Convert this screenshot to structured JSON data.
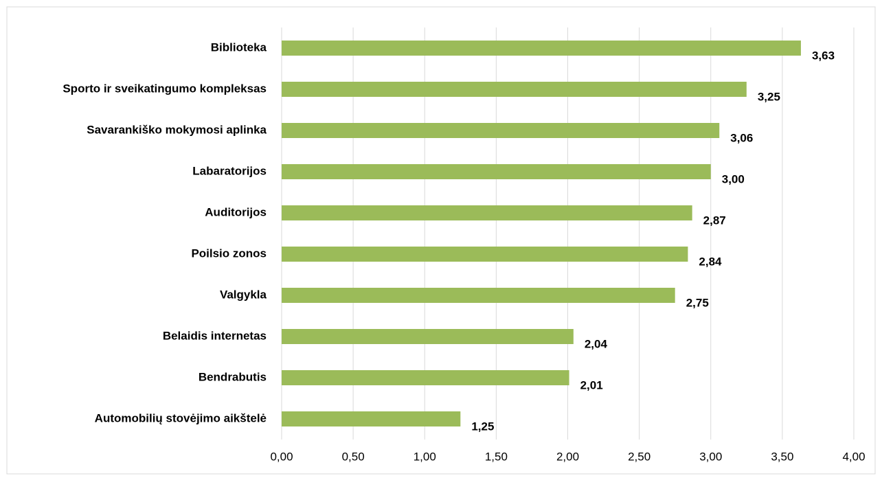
{
  "chart_data": {
    "type": "bar",
    "orientation": "horizontal",
    "categories": [
      "Biblioteka",
      "Sporto ir sveikatingumo kompleksas",
      "Savarankiško mokymosi aplinka",
      "Labaratorijos",
      "Auditorijos",
      "Poilsio zonos",
      "Valgykla",
      "Belaidis internetas",
      "Bendrabutis",
      "Automobilių stovėjimo aikštelė"
    ],
    "values": [
      3.63,
      3.25,
      3.06,
      3.0,
      2.87,
      2.84,
      2.75,
      2.04,
      2.01,
      1.25
    ],
    "value_labels": [
      "3,63",
      "3,25",
      "3,06",
      "3,00",
      "2,87",
      "2,84",
      "2,75",
      "2,04",
      "2,01",
      "1,25"
    ],
    "color": "#9bbb59",
    "xlim": [
      0,
      4
    ],
    "xticks": [
      {
        "value": 0,
        "label": "0,00"
      },
      {
        "value": 0.5,
        "label": "0,50"
      },
      {
        "value": 1,
        "label": "1,00"
      },
      {
        "value": 1.5,
        "label": "1,50"
      },
      {
        "value": 2,
        "label": "2,00"
      },
      {
        "value": 2.5,
        "label": "2,50"
      },
      {
        "value": 3,
        "label": "3,00"
      },
      {
        "value": 3.5,
        "label": "3,50"
      },
      {
        "value": 4,
        "label": "4,00"
      }
    ],
    "grid": true
  }
}
